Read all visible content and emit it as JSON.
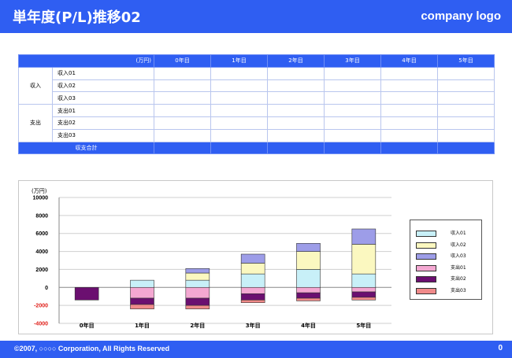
{
  "header": {
    "title": "単年度(P/L)推移02",
    "logo": "company logo"
  },
  "footer": {
    "copyright": "©2007, ○○○○ Corporation, All Rights Reserved",
    "page": "0"
  },
  "table": {
    "unit": "(万円)",
    "columns": [
      "0年目",
      "1年目",
      "2年目",
      "3年目",
      "4年目",
      "5年目"
    ],
    "income_label": "収入",
    "income_items": [
      "収入01",
      "収入02",
      "収入03"
    ],
    "expense_label": "支出",
    "expense_items": [
      "支出01",
      "支出02",
      "支出03"
    ],
    "total_label": "収支合計"
  },
  "chart_data": {
    "type": "bar",
    "stacked": true,
    "ylabel": "(万円)",
    "ylim": [
      -4000,
      10000
    ],
    "yticks": [
      "10000",
      "8000",
      "6000",
      "4000",
      "2000",
      "0",
      "-2000",
      "-4000"
    ],
    "negative_tick_color": "#e0201a",
    "grid": true,
    "legend_position": "right",
    "categories": [
      "0年目",
      "1年目",
      "2年目",
      "3年目",
      "4年目",
      "5年目"
    ],
    "series": [
      {
        "name": "収入01",
        "color": "#c8f0f8",
        "values": [
          0,
          800,
          800,
          1500,
          2000,
          1500
        ]
      },
      {
        "name": "収入02",
        "color": "#fbf8c0",
        "values": [
          0,
          0,
          800,
          1200,
          2000,
          3300
        ]
      },
      {
        "name": "収入03",
        "color": "#9d9de8",
        "values": [
          0,
          0,
          500,
          1000,
          900,
          1700
        ]
      },
      {
        "name": "支出01",
        "color": "#f4a8d2",
        "values": [
          0,
          -1200,
          -1200,
          -700,
          -600,
          -500
        ]
      },
      {
        "name": "支出02",
        "color": "#6b0f70",
        "values": [
          -1400,
          -700,
          -800,
          -700,
          -600,
          -600
        ]
      },
      {
        "name": "支出03",
        "color": "#f08a8a",
        "values": [
          0,
          -500,
          -400,
          -300,
          -300,
          -300
        ]
      }
    ]
  }
}
